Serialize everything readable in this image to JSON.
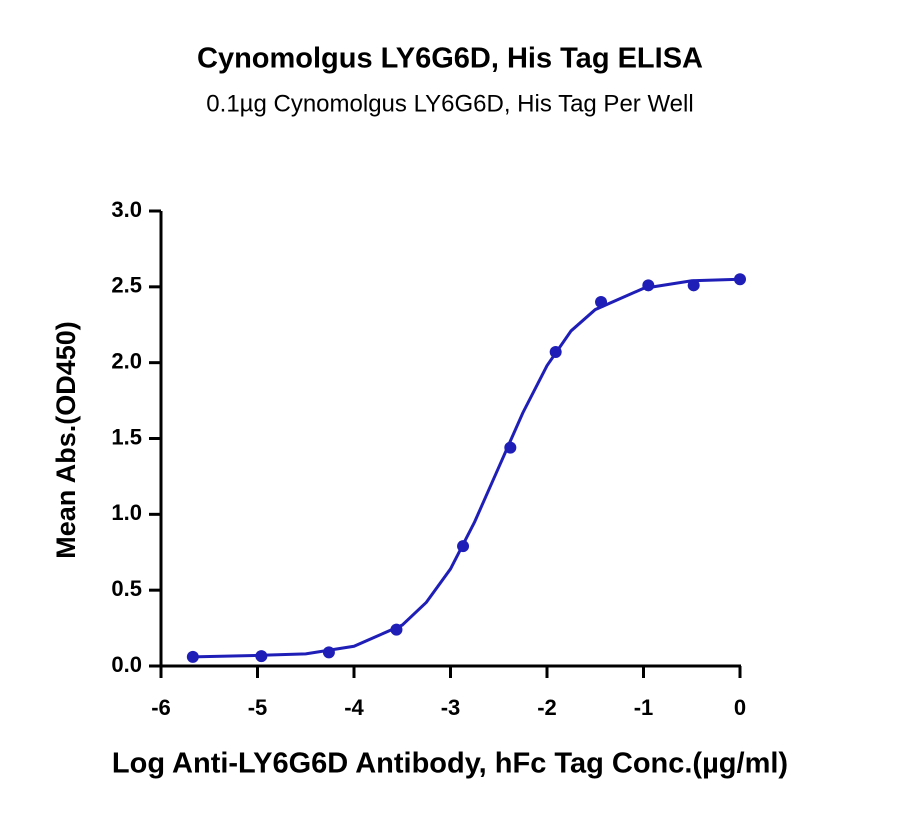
{
  "chart_data": {
    "type": "scatter",
    "title": "Cynomolgus LY6G6D, His Tag ELISA",
    "subtitle": "0.1µg Cynomolgus LY6G6D, His Tag Per Well",
    "x_label": "Log Anti-LY6G6D Antibody, hFc Tag Conc.(µg/ml)",
    "y_label": "Mean Abs.(OD450)",
    "color": "#1f1fb8",
    "x": [
      -5.67,
      -4.96,
      -4.26,
      -3.56,
      -2.87,
      -2.38,
      -1.91,
      -1.44,
      -0.95,
      -0.48,
      0
    ],
    "values": [
      0.06,
      0.065,
      0.09,
      0.24,
      0.79,
      1.44,
      2.07,
      2.4,
      2.51,
      2.51,
      2.55
    ],
    "curve": {
      "x": [
        -5.67,
        -5,
        -4.5,
        -4,
        -3.5,
        -3.25,
        -3,
        -2.75,
        -2.5,
        -2.25,
        -2,
        -1.75,
        -1.5,
        -1,
        -0.5,
        0
      ],
      "values": [
        0.06,
        0.07,
        0.08,
        0.13,
        0.27,
        0.42,
        0.64,
        0.95,
        1.31,
        1.67,
        1.98,
        2.21,
        2.35,
        2.49,
        2.54,
        2.55
      ]
    },
    "xlim": [
      -6,
      0
    ],
    "ylim": [
      0,
      3
    ],
    "xticks": [
      -6,
      -5,
      -4,
      -3,
      -2,
      -1,
      0
    ],
    "yticks": [
      {
        "value": 0,
        "label": "0.0"
      },
      0.5,
      {
        "value": 1,
        "label": "1.0"
      },
      1.5,
      {
        "value": 2,
        "label": "2.0"
      },
      2.5,
      {
        "value": 3,
        "label": "3.0"
      }
    ]
  }
}
